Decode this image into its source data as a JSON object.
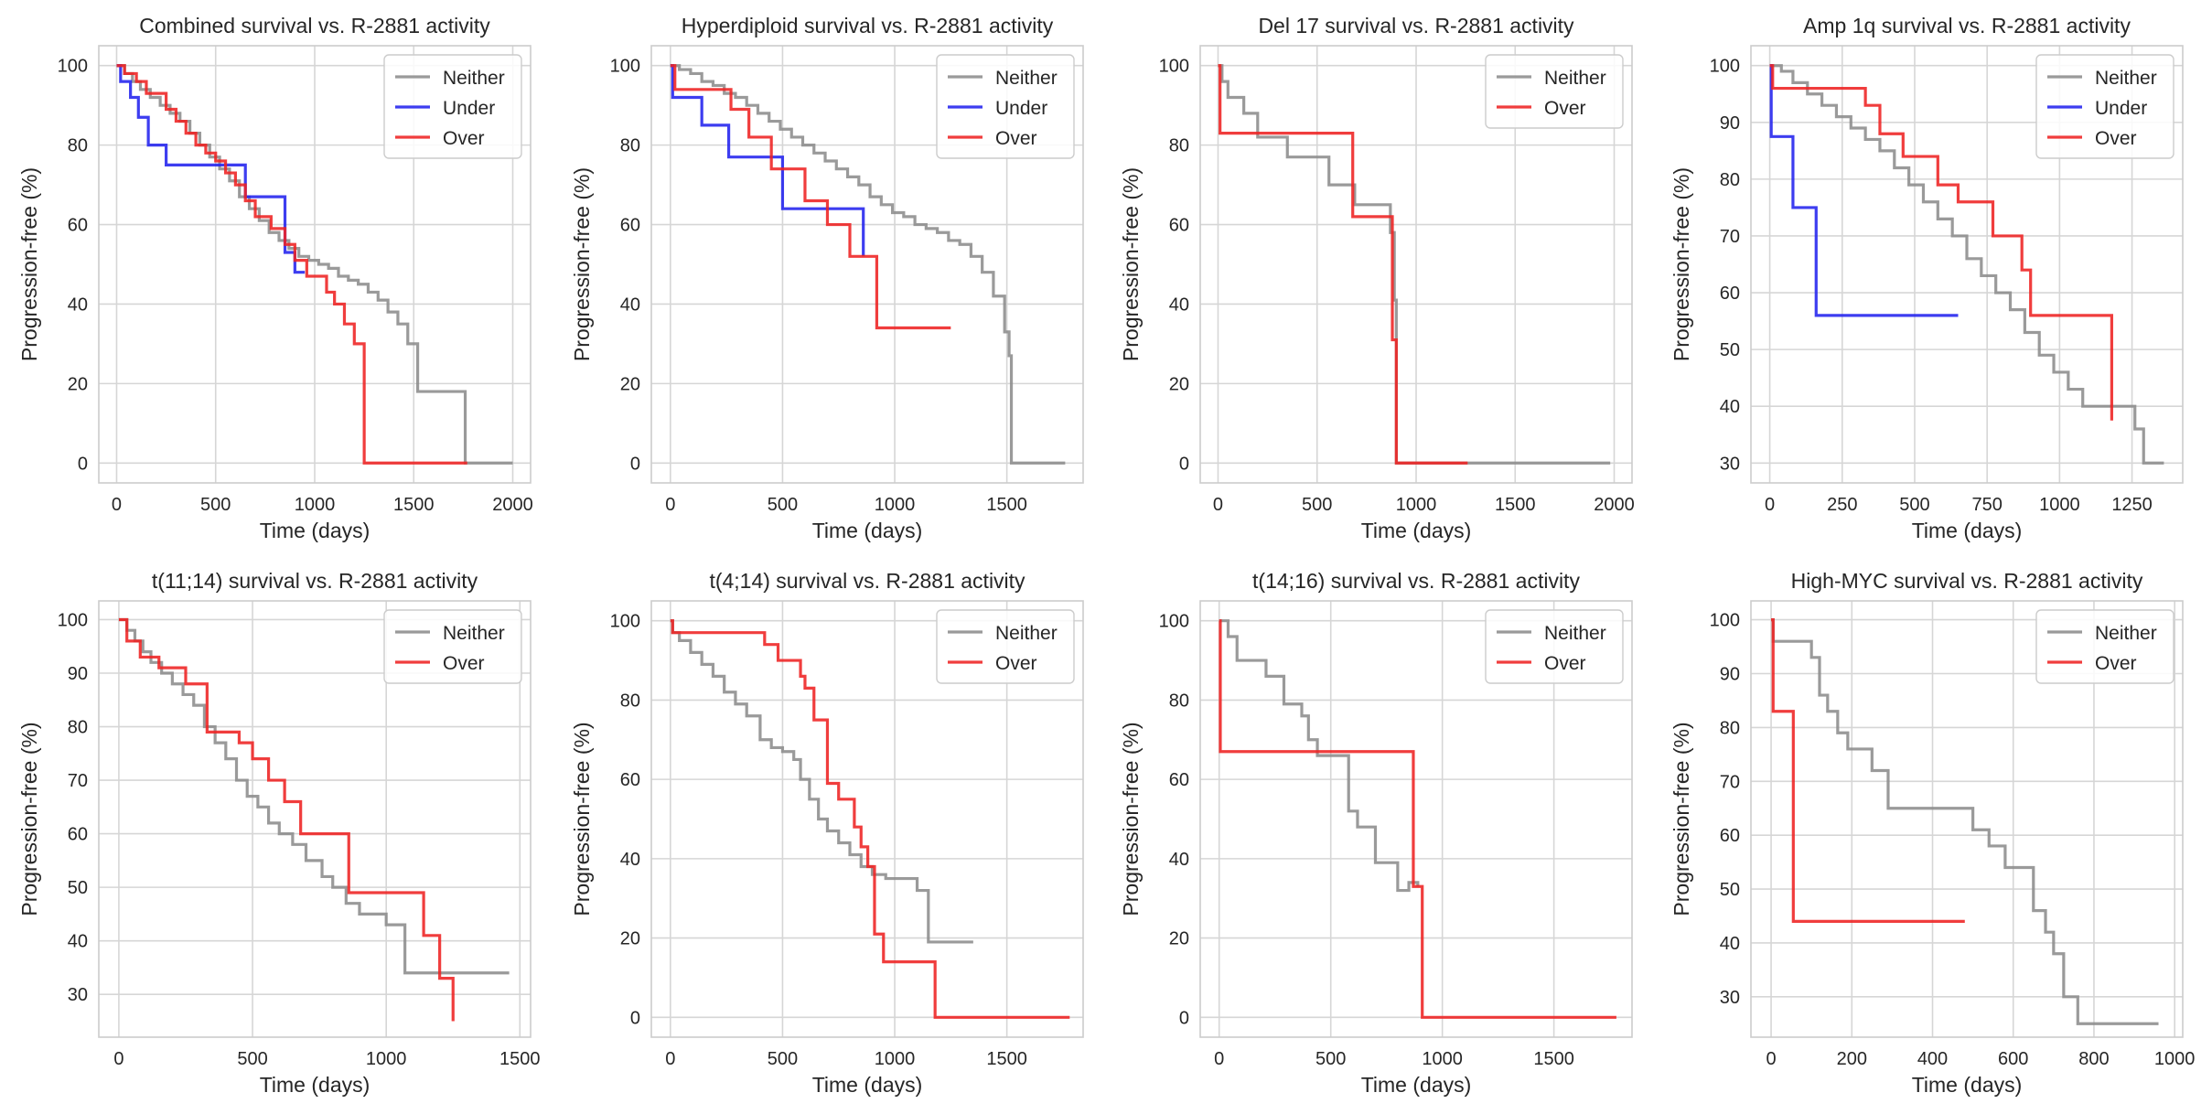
{
  "colors": {
    "Neither": "#8c8c8c",
    "Under": "#2222ee",
    "Over": "#ee2222",
    "grid": "#d6d6d6",
    "frame": "#cccccc"
  },
  "chart_data": [
    {
      "type": "line",
      "step": "post",
      "title": "Combined survival vs. R-2881 activity",
      "xlabel": "Time (days)",
      "ylabel": "Progression-free (%)",
      "xlim": [
        -90,
        2090
      ],
      "ylim": [
        -5,
        105
      ],
      "xticks": [
        0,
        500,
        1000,
        1500,
        2000
      ],
      "yticks": [
        0,
        20,
        40,
        60,
        80,
        100
      ],
      "legend": "top-right",
      "grid": true,
      "series": [
        {
          "name": "Neither",
          "x": [
            0,
            40,
            80,
            120,
            170,
            220,
            270,
            320,
            370,
            420,
            470,
            520,
            570,
            620,
            670,
            720,
            770,
            820,
            870,
            920,
            970,
            1020,
            1070,
            1120,
            1170,
            1220,
            1270,
            1320,
            1370,
            1420,
            1470,
            1520,
            1760,
            2000
          ],
          "y": [
            100,
            98,
            96,
            94,
            92,
            90,
            88,
            86,
            83,
            80,
            77,
            74,
            71,
            67,
            64,
            61,
            58,
            56,
            54,
            52,
            51,
            50,
            49,
            47,
            46,
            45,
            43,
            41,
            38,
            35,
            30,
            18,
            0,
            0
          ]
        },
        {
          "name": "Under",
          "x": [
            0,
            20,
            70,
            110,
            160,
            250,
            400,
            650,
            850,
            900,
            950
          ],
          "y": [
            100,
            96,
            92,
            87,
            80,
            75,
            75,
            67,
            53,
            48,
            48
          ]
        },
        {
          "name": "Over",
          "x": [
            0,
            40,
            100,
            150,
            250,
            300,
            350,
            400,
            450,
            500,
            550,
            600,
            650,
            700,
            780,
            850,
            900,
            960,
            1060,
            1100,
            1150,
            1200,
            1250,
            1500,
            1770
          ],
          "y": [
            100,
            98,
            96,
            93,
            89,
            86,
            83,
            80,
            78,
            76,
            73,
            70,
            66,
            62,
            59,
            55,
            51,
            47,
            43,
            40,
            35,
            30,
            0,
            0,
            0
          ]
        }
      ]
    },
    {
      "type": "line",
      "step": "post",
      "title": "Hyperdiploid survival vs. R-2881 activity",
      "xlabel": "Time (days)",
      "ylabel": "Progression-free (%)",
      "xlim": [
        -85,
        1840
      ],
      "ylim": [
        -5,
        105
      ],
      "xticks": [
        0,
        500,
        1000,
        1500
      ],
      "yticks": [
        0,
        20,
        40,
        60,
        80,
        100
      ],
      "legend": "top-right",
      "grid": true,
      "series": [
        {
          "name": "Neither",
          "x": [
            0,
            40,
            90,
            140,
            190,
            240,
            290,
            340,
            390,
            440,
            490,
            540,
            590,
            640,
            690,
            740,
            790,
            840,
            890,
            940,
            990,
            1040,
            1090,
            1140,
            1190,
            1240,
            1290,
            1340,
            1390,
            1440,
            1490,
            1510,
            1520,
            1760
          ],
          "y": [
            100,
            99,
            98,
            96,
            95,
            93,
            92,
            90,
            88,
            86,
            84,
            82,
            80,
            78,
            76,
            74,
            72,
            70,
            67,
            65,
            63,
            62,
            60,
            59,
            58,
            56,
            55,
            52,
            48,
            42,
            33,
            27,
            0,
            0
          ]
        },
        {
          "name": "Under",
          "x": [
            0,
            10,
            80,
            140,
            260,
            500,
            830,
            860
          ],
          "y": [
            100,
            92,
            92,
            85,
            77,
            64,
            64,
            52
          ]
        },
        {
          "name": "Over",
          "x": [
            0,
            20,
            140,
            270,
            350,
            450,
            600,
            700,
            800,
            920,
            1250
          ],
          "y": [
            100,
            94,
            94,
            89,
            82,
            74,
            66,
            60,
            52,
            34,
            34
          ]
        }
      ]
    },
    {
      "type": "line",
      "step": "post",
      "title": "Del 17 survival vs. R-2881 activity",
      "xlabel": "Time (days)",
      "ylabel": "Progression-free (%)",
      "xlim": [
        -90,
        2090
      ],
      "ylim": [
        -5,
        105
      ],
      "xticks": [
        0,
        500,
        1000,
        1500,
        2000
      ],
      "yticks": [
        0,
        20,
        40,
        60,
        80,
        100
      ],
      "legend": "top-right",
      "grid": true,
      "series": [
        {
          "name": "Neither",
          "x": [
            0,
            20,
            50,
            130,
            200,
            350,
            560,
            690,
            870,
            890,
            900,
            1980
          ],
          "y": [
            100,
            96,
            92,
            88,
            82,
            77,
            70,
            65,
            58,
            41,
            0,
            0
          ]
        },
        {
          "name": "Over",
          "x": [
            0,
            10,
            610,
            680,
            880,
            900,
            1260
          ],
          "y": [
            100,
            83,
            83,
            62,
            31,
            0,
            0
          ]
        }
      ]
    },
    {
      "type": "line",
      "step": "post",
      "title": "Amp 1q survival vs. R-2881 activity",
      "xlabel": "Time (days)",
      "ylabel": "Progression-free (%)",
      "xlim": [
        -65,
        1425
      ],
      "ylim": [
        26.5,
        103.5
      ],
      "xticks": [
        0,
        250,
        500,
        750,
        1000,
        1250
      ],
      "yticks": [
        30,
        40,
        50,
        60,
        70,
        80,
        90,
        100
      ],
      "legend": "top-right",
      "grid": true,
      "series": [
        {
          "name": "Neither",
          "x": [
            0,
            40,
            80,
            130,
            180,
            230,
            280,
            330,
            380,
            430,
            480,
            530,
            580,
            630,
            680,
            730,
            780,
            830,
            880,
            930,
            980,
            1030,
            1080,
            1130,
            1180,
            1230,
            1260,
            1290,
            1360
          ],
          "y": [
            100,
            99,
            97,
            95,
            93,
            91,
            89,
            87,
            85,
            82,
            79,
            76,
            73,
            70,
            66,
            63,
            60,
            57,
            53,
            49,
            46,
            43,
            40,
            40,
            40,
            40,
            36,
            30,
            30
          ]
        },
        {
          "name": "Under",
          "x": [
            0,
            5,
            80,
            160,
            650
          ],
          "y": [
            100,
            87.5,
            75,
            56,
            56
          ]
        },
        {
          "name": "Over",
          "x": [
            0,
            10,
            250,
            330,
            380,
            460,
            580,
            650,
            770,
            870,
            900,
            1180
          ],
          "y": [
            100,
            96,
            96,
            93,
            88,
            84,
            79,
            76,
            70,
            64,
            56,
            37.5
          ]
        }
      ]
    },
    {
      "type": "line",
      "step": "post",
      "title": "t(11;14) survival vs. R-2881 activity",
      "xlabel": "Time (days)",
      "ylabel": "Progression-free (%)",
      "xlim": [
        -75,
        1540
      ],
      "ylim": [
        22,
        103.5
      ],
      "xticks": [
        0,
        500,
        1000,
        1500
      ],
      "yticks": [
        30,
        40,
        50,
        60,
        70,
        80,
        90,
        100
      ],
      "legend": "top-right",
      "grid": true,
      "series": [
        {
          "name": "Neither",
          "x": [
            0,
            30,
            60,
            90,
            120,
            160,
            200,
            240,
            280,
            320,
            360,
            400,
            440,
            480,
            520,
            560,
            600,
            650,
            700,
            760,
            800,
            850,
            900,
            1000,
            1070,
            1200,
            1460
          ],
          "y": [
            100,
            98,
            96,
            94,
            92,
            90,
            88,
            86,
            84,
            80,
            77,
            74,
            70,
            67,
            65,
            62,
            60,
            58,
            55,
            52,
            50,
            47,
            45,
            43,
            34,
            34,
            34
          ]
        },
        {
          "name": "Over",
          "x": [
            0,
            30,
            80,
            150,
            250,
            330,
            450,
            500,
            560,
            620,
            680,
            860,
            1140,
            1200,
            1250
          ],
          "y": [
            100,
            96,
            93,
            91,
            88,
            79,
            77,
            74,
            70,
            66,
            60,
            49,
            41,
            33,
            25
          ]
        }
      ]
    },
    {
      "type": "line",
      "step": "post",
      "title": "t(4;14) survival vs. R-2881 activity",
      "xlabel": "Time (days)",
      "ylabel": "Progression-free (%)",
      "xlim": [
        -85,
        1840
      ],
      "ylim": [
        -5,
        105
      ],
      "xticks": [
        0,
        500,
        1000,
        1500
      ],
      "yticks": [
        0,
        20,
        40,
        60,
        80,
        100
      ],
      "legend": "top-right",
      "grid": true,
      "series": [
        {
          "name": "Neither",
          "x": [
            0,
            10,
            40,
            90,
            140,
            190,
            240,
            290,
            340,
            400,
            450,
            500,
            550,
            580,
            620,
            660,
            700,
            750,
            800,
            850,
            900,
            960,
            1100,
            1150,
            1350
          ],
          "y": [
            100,
            97,
            95,
            92,
            89,
            86,
            82,
            79,
            76,
            70,
            68,
            67,
            65,
            60,
            55,
            50,
            47,
            44,
            41,
            38,
            36,
            35,
            32,
            19,
            19
          ]
        },
        {
          "name": "Over",
          "x": [
            0,
            10,
            380,
            420,
            480,
            580,
            600,
            640,
            700,
            750,
            820,
            850,
            880,
            910,
            950,
            1180,
            1780
          ],
          "y": [
            100,
            97,
            97,
            94,
            90,
            86,
            83,
            75,
            59,
            55,
            48,
            43,
            38,
            21,
            14,
            0,
            0
          ]
        }
      ]
    },
    {
      "type": "line",
      "step": "post",
      "title": "t(14;16) survival vs. R-2881 activity",
      "xlabel": "Time (days)",
      "ylabel": "Progression-free (%)",
      "xlim": [
        -85,
        1850
      ],
      "ylim": [
        -5,
        105
      ],
      "xticks": [
        0,
        500,
        1000,
        1500
      ],
      "yticks": [
        0,
        20,
        40,
        60,
        80,
        100
      ],
      "legend": "top-right",
      "grid": true,
      "series": [
        {
          "name": "Neither",
          "x": [
            0,
            40,
            80,
            210,
            290,
            370,
            400,
            440,
            580,
            620,
            700,
            800,
            850,
            890
          ],
          "y": [
            100,
            96,
            90,
            86,
            79,
            76,
            70,
            66,
            52,
            48,
            39,
            32,
            34,
            33
          ]
        },
        {
          "name": "Over",
          "x": [
            0,
            5,
            870,
            910,
            1780
          ],
          "y": [
            100,
            67,
            33,
            0,
            0
          ]
        }
      ]
    },
    {
      "type": "line",
      "step": "post",
      "title": "High-MYC survival vs. R-2881 activity",
      "xlabel": "Time (days)",
      "ylabel": "Progression-free (%)",
      "xlim": [
        -50,
        1020
      ],
      "ylim": [
        22.5,
        103.5
      ],
      "xticks": [
        0,
        200,
        400,
        600,
        800,
        1000
      ],
      "yticks": [
        30,
        40,
        50,
        60,
        70,
        80,
        90,
        100
      ],
      "legend": "top-right",
      "grid": true,
      "series": [
        {
          "name": "Neither",
          "x": [
            0,
            5,
            100,
            120,
            140,
            165,
            190,
            250,
            290,
            500,
            540,
            580,
            650,
            680,
            700,
            725,
            760,
            960
          ],
          "y": [
            100,
            96,
            93,
            86,
            83,
            79,
            76,
            72,
            65,
            61,
            58,
            54,
            46,
            42,
            38,
            30,
            25,
            25
          ]
        },
        {
          "name": "Over",
          "x": [
            0,
            5,
            55,
            480
          ],
          "y": [
            100,
            83,
            44,
            44
          ]
        }
      ]
    }
  ]
}
